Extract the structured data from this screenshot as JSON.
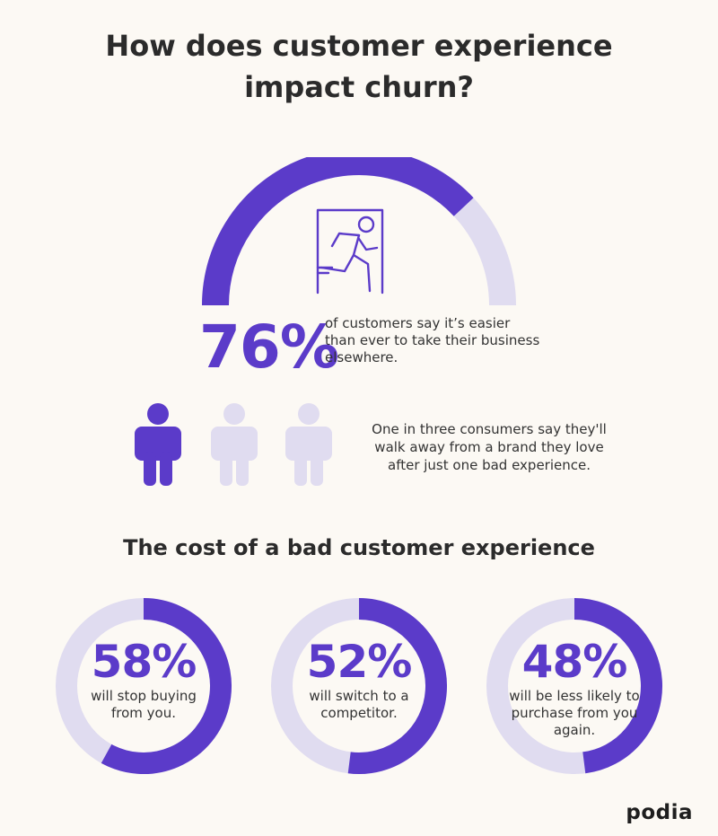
{
  "title": {
    "line1": "How does customer experience",
    "line2": "impact churn?"
  },
  "colors": {
    "accent": "#5b3bc9",
    "track": "#e0dcf0",
    "background": "#fcf9f4"
  },
  "chart_data": [
    {
      "type": "gauge",
      "title": "How does customer experience impact churn?",
      "value": 76,
      "max": 100,
      "label": "76%",
      "description": "of customers say it’s easier than ever to take their business elsewhere.",
      "icon": "exit-door-running-person-icon"
    },
    {
      "type": "pictogram",
      "total": 3,
      "highlighted": 1,
      "icon": "person-icon",
      "description": "One in three consumers say they'll walk away from a brand they love after just one bad experience."
    },
    {
      "type": "donut",
      "title": "The cost of a bad customer experience",
      "items": [
        {
          "value": 58,
          "label": "58%",
          "description": "will stop buying from you."
        },
        {
          "value": 52,
          "label": "52%",
          "description": "will switch to a competitor."
        },
        {
          "value": 48,
          "label": "48%",
          "description": "will be less likely to purchase from you again."
        }
      ]
    }
  ],
  "gauge": {
    "label": "76%",
    "description": "of customers say it’s easier than ever to take their business elsewhere."
  },
  "people": {
    "description": "One in three consumers say they'll walk away from a brand they love after just one bad experience."
  },
  "section2": {
    "title": "The cost of a bad customer experience"
  },
  "donuts": [
    {
      "label": "58%",
      "description": "will stop buying from you."
    },
    {
      "label": "52%",
      "description": "will switch to a competitor."
    },
    {
      "label": "48%",
      "description": "will be less likely to purchase from you again."
    }
  ],
  "logo": "podia"
}
